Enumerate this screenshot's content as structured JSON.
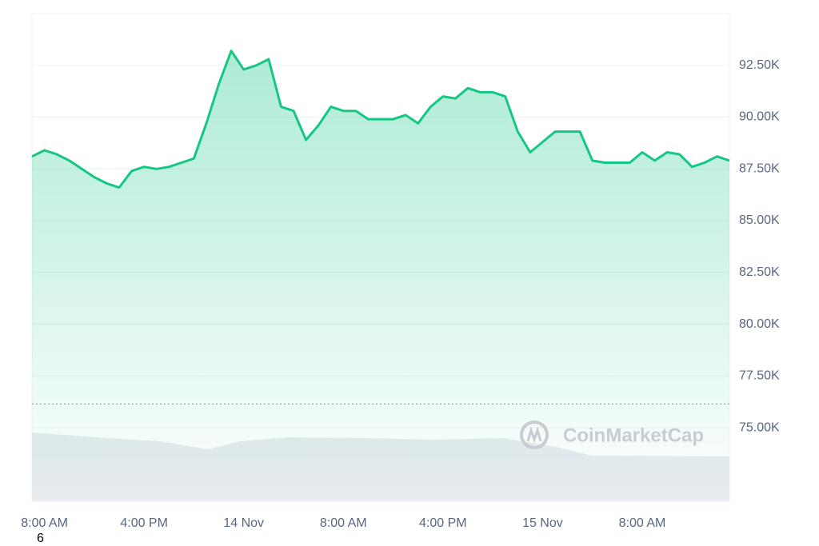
{
  "chart_data": {
    "type": "line",
    "watermark": "CoinMarketCap",
    "page_marker": "6",
    "categories": [
      null,
      "8:00 AM",
      null,
      null,
      null,
      null,
      null,
      null,
      null,
      "4:00 PM",
      null,
      null,
      null,
      null,
      null,
      null,
      null,
      "14 Nov",
      null,
      null,
      null,
      null,
      null,
      null,
      null,
      "8:00 AM",
      null,
      null,
      null,
      null,
      null,
      null,
      null,
      "4:00 PM",
      null,
      null,
      null,
      null,
      null,
      null,
      null,
      "15 Nov",
      null,
      null,
      null,
      null,
      null,
      null,
      null,
      "8:00 AM",
      null,
      null,
      null,
      null,
      null,
      null,
      null
    ],
    "series": [
      {
        "color": "#16c784",
        "values": [
          88100,
          88400,
          88200,
          87900,
          87500,
          87100,
          86800,
          86600,
          87400,
          87600,
          87500,
          87600,
          87800,
          88000,
          89700,
          91600,
          93200,
          92300,
          92500,
          92800,
          90500,
          90300,
          88900,
          89600,
          90500,
          90300,
          90300,
          89900,
          89900,
          89900,
          90100,
          89700,
          90500,
          91000,
          90900,
          91400,
          91200,
          91200,
          91000,
          89300,
          88300,
          88800,
          89300,
          89300,
          89300,
          87900,
          87800,
          87800,
          87800,
          88300,
          87900,
          88300,
          88200,
          87600,
          87800,
          88100,
          87900
        ]
      }
    ],
    "baseline": 76150,
    "ylim": [
      71450,
      95000
    ],
    "yticks": [
      {
        "value": 75000,
        "label": "75.00K"
      },
      {
        "value": 77500,
        "label": "77.50K"
      },
      {
        "value": 80000,
        "label": "80.00K"
      },
      {
        "value": 82500,
        "label": "82.50K"
      },
      {
        "value": 85000,
        "label": "85.00K"
      },
      {
        "value": 87500,
        "label": "87.50K"
      },
      {
        "value": 90000,
        "label": "90.00K"
      },
      {
        "value": 92500,
        "label": "92.50K"
      }
    ],
    "grid": true
  }
}
